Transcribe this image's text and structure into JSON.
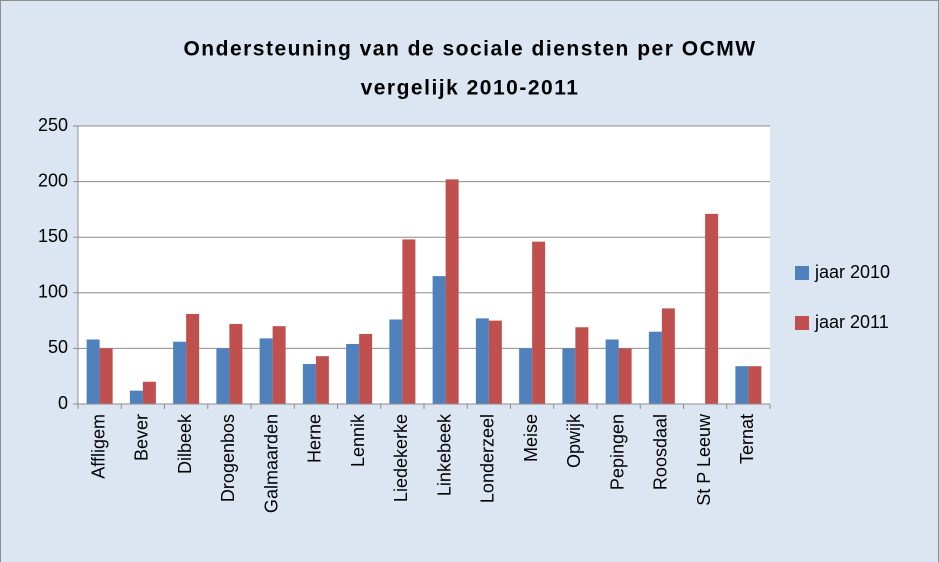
{
  "chart_data": {
    "type": "bar",
    "title": "Ondersteuning van de sociale diensten per OCMW",
    "subtitle": "vergelijk 2010-2011",
    "categories": [
      "Affligem",
      "Bever",
      "Dilbeek",
      "Drogenbos",
      "Galmaarden",
      "Herne",
      "Lennik",
      "Liedekerke",
      "Linkebeek",
      "Londerzeel",
      "Meise",
      "Opwijk",
      "Pepingen",
      "Roosdaal",
      "St P Leeuw",
      "Ternat"
    ],
    "series": [
      {
        "name": "jaar 2010",
        "color": "#4f81bd",
        "values": [
          58,
          12,
          56,
          50,
          59,
          36,
          54,
          76,
          115,
          77,
          50,
          50,
          58,
          65,
          null,
          34
        ]
      },
      {
        "name": "jaar 2011",
        "color": "#c0504d",
        "values": [
          50,
          20,
          81,
          72,
          70,
          43,
          63,
          148,
          202,
          75,
          146,
          69,
          50,
          86,
          171,
          34
        ]
      }
    ],
    "ylim": [
      0,
      250
    ],
    "yticks": [
      0,
      50,
      100,
      150,
      200,
      250
    ],
    "grid": true,
    "legend": "right"
  }
}
